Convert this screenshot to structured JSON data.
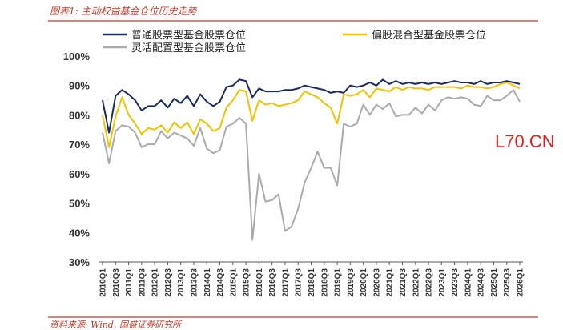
{
  "header": {
    "title": "图表1: 主动权益基金仓位历史走势"
  },
  "footer": {
    "source": "资料来源: Wind, 国盛证券研究所"
  },
  "watermark": {
    "text": "L70.CN"
  },
  "chart_data": {
    "type": "line",
    "title": "图表1: 主动权益基金仓位历史走势",
    "xlabel": "",
    "ylabel": "",
    "ylim": [
      30,
      100
    ],
    "yticks": [
      "30%",
      "40%",
      "50%",
      "60%",
      "70%",
      "80%",
      "90%",
      "100%"
    ],
    "grid": false,
    "legend_position": "top",
    "x": [
      "2010Q1",
      "2010Q2",
      "2010Q3",
      "2010Q4",
      "2011Q1",
      "2011Q2",
      "2011Q3",
      "2011Q4",
      "2012Q1",
      "2012Q2",
      "2012Q3",
      "2012Q4",
      "2013Q1",
      "2013Q2",
      "2013Q3",
      "2013Q4",
      "2014Q1",
      "2014Q2",
      "2014Q3",
      "2014Q4",
      "2015Q1",
      "2015Q2",
      "2015Q3",
      "2015Q4",
      "2016Q1",
      "2016Q2",
      "2016Q3",
      "2016Q4",
      "2017Q1",
      "2017Q2",
      "2017Q3",
      "2017Q4",
      "2018Q1",
      "2018Q2",
      "2018Q3",
      "2018Q4",
      "2019Q1",
      "2019Q2",
      "2019Q3",
      "2019Q4",
      "2020Q1",
      "2020Q2",
      "2020Q3",
      "2020Q4",
      "2021Q1",
      "2021Q2",
      "2021Q3",
      "2021Q4",
      "2022Q1",
      "2022Q2",
      "2022Q3",
      "2022Q4",
      "2023Q1",
      "2023Q2",
      "2023Q3",
      "2023Q4",
      "2024Q1",
      "2024Q2",
      "2024Q3",
      "2024Q4",
      "2025Q1",
      "2025Q2",
      "2025Q3",
      "2025Q4",
      "2026Q1"
    ],
    "xtick_labels": [
      "2010Q1",
      "2010Q3",
      "2011Q1",
      "2011Q3",
      "2012Q1",
      "2012Q3",
      "2013Q1",
      "2013Q3",
      "2014Q1",
      "2014Q3",
      "2015Q1",
      "2015Q3",
      "2016Q1",
      "2016Q3",
      "2017Q1",
      "2017Q3",
      "2018Q1",
      "2018Q3",
      "2019Q1",
      "2019Q3",
      "2020Q1",
      "2020Q3",
      "2021Q1",
      "2021Q3",
      "2022Q1",
      "2022Q3",
      "2023Q1",
      "2023Q3",
      "2024Q1",
      "2024Q3",
      "2025Q1",
      "2025Q3",
      "2026Q1"
    ],
    "series": [
      {
        "name": "普通股票型基金股票仓位",
        "color": "#1b2a5e",
        "values": [
          85,
          74,
          86.5,
          88.5,
          87,
          85,
          81.5,
          83,
          83,
          85,
          82.5,
          85.5,
          84,
          86.5,
          83,
          87,
          84.5,
          83,
          84.5,
          89.5,
          90,
          92,
          91.5,
          86,
          89,
          88,
          88,
          88,
          88.5,
          88.5,
          89,
          90,
          89.5,
          89,
          88.5,
          87.5,
          88,
          87.5,
          90,
          89.5,
          90,
          91,
          90,
          92,
          90.5,
          91.5,
          90.5,
          91,
          90.5,
          91,
          90.5,
          91,
          90.5,
          91,
          91.5,
          91,
          91,
          90.5,
          91.5,
          90.5,
          91,
          91,
          91.5,
          91,
          90.5
        ]
      },
      {
        "name": "偏股混合型基金股票仓位",
        "color": "#f2c200",
        "values": [
          80,
          69,
          79.5,
          86,
          80,
          77,
          73.5,
          75.5,
          75,
          76.5,
          74,
          77.5,
          75.5,
          77.5,
          73.5,
          78.5,
          77,
          74.5,
          75.5,
          82.5,
          85,
          88.5,
          88,
          78,
          85,
          83.5,
          84,
          83,
          83.5,
          84,
          85,
          88,
          87,
          86,
          84,
          82.5,
          77,
          87,
          86.5,
          87,
          88.5,
          86,
          89,
          88.5,
          88,
          89.5,
          88.5,
          89.5,
          89,
          89,
          88.5,
          89.5,
          89.5,
          89.5,
          89.5,
          89,
          90,
          89.5,
          89.5,
          89,
          89.5,
          90.5,
          91,
          90,
          89
        ]
      },
      {
        "name": "灵活配置型基金股票仓位",
        "color": "#aaaaaa",
        "values": [
          74,
          63.5,
          74.5,
          76.5,
          76,
          74,
          69,
          70,
          70,
          74.5,
          72,
          74,
          73,
          72,
          69.5,
          75.5,
          68.5,
          67,
          68,
          76,
          77,
          79,
          77,
          37.5,
          60,
          50.5,
          51,
          53,
          40.5,
          42,
          48,
          57,
          62,
          67.5,
          62,
          62,
          56,
          77,
          76,
          77,
          83.5,
          80,
          83.5,
          82,
          84,
          79.5,
          80,
          80,
          82.5,
          80.5,
          83.5,
          81.5,
          85,
          86,
          85.5,
          86,
          85.5,
          83.5,
          83,
          86.5,
          85,
          85,
          86.5,
          88.5,
          84.5
        ]
      }
    ]
  }
}
